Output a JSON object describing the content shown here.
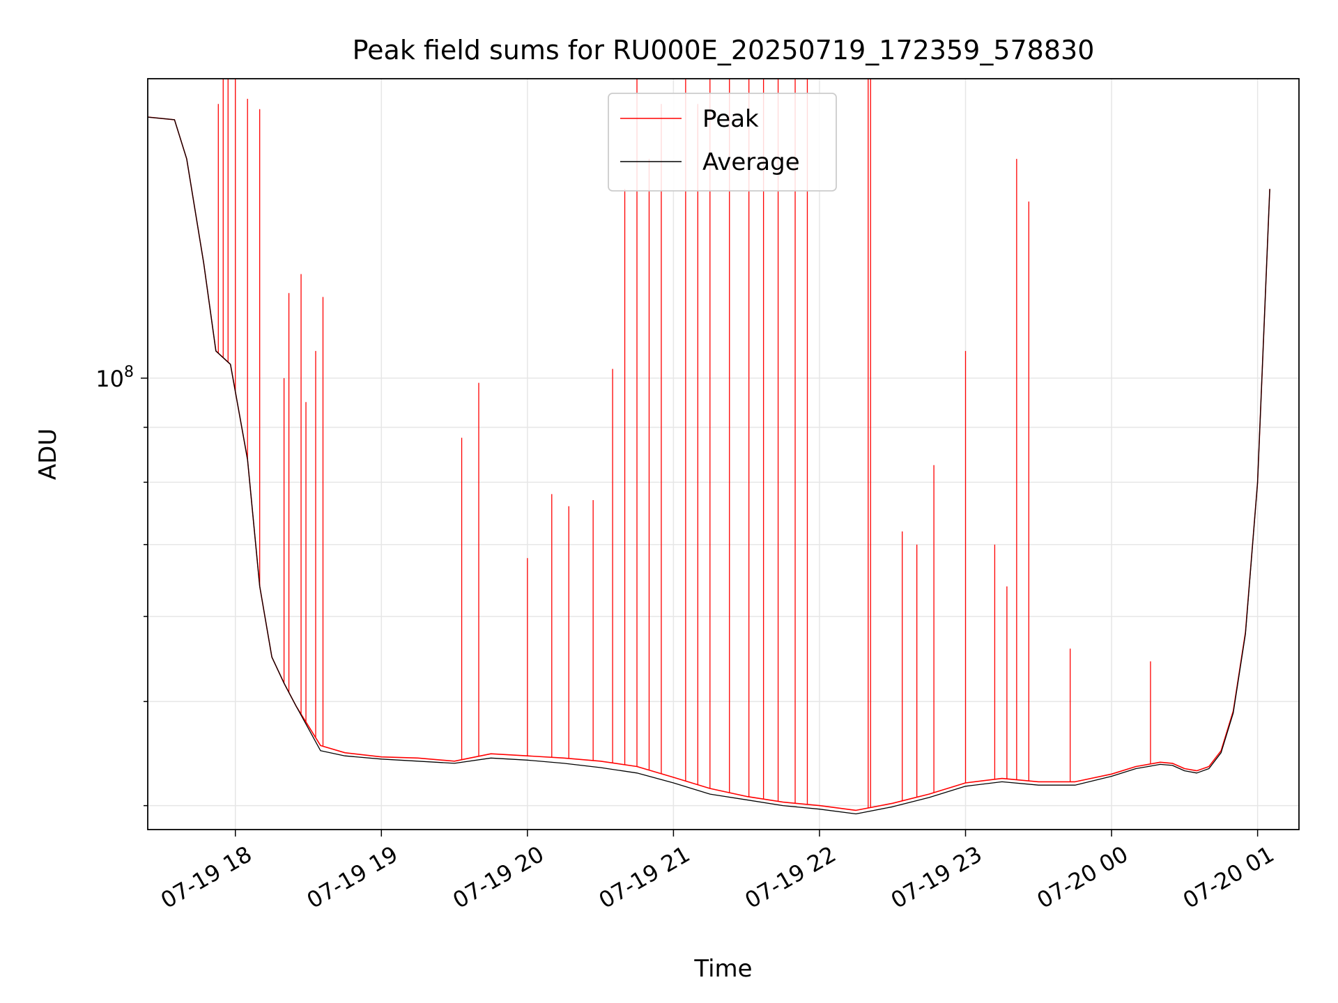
{
  "chart_data": {
    "type": "line",
    "title": "Peak field sums for RU000E_20250719_172359_578830",
    "xlabel": "Time",
    "ylabel": "ADU",
    "yscale": "log",
    "ylim": [
      38000000,
      190000000
    ],
    "xlim": [
      "2025-07-19 17:24",
      "2025-07-20 01:17"
    ],
    "x_ticks": [
      {
        "t": "2025-07-19 18:00",
        "label": "07-19 18"
      },
      {
        "t": "2025-07-19 19:00",
        "label": "07-19 19"
      },
      {
        "t": "2025-07-19 20:00",
        "label": "07-19 20"
      },
      {
        "t": "2025-07-19 21:00",
        "label": "07-19 21"
      },
      {
        "t": "2025-07-19 22:00",
        "label": "07-19 22"
      },
      {
        "t": "2025-07-19 23:00",
        "label": "07-19 23"
      },
      {
        "t": "2025-07-20 00:00",
        "label": "07-20 00"
      },
      {
        "t": "2025-07-20 01:00",
        "label": "07-20 01"
      }
    ],
    "y_ticks": [
      {
        "value": 100000000,
        "base": "10",
        "exp": "8"
      }
    ],
    "grid": true,
    "legend": {
      "position": "top-center"
    },
    "series": [
      {
        "name": "Peak",
        "color": "#ff0000",
        "x": [
          "2025-07-19 17:24",
          "2025-07-19 17:35",
          "2025-07-19 17:40",
          "2025-07-19 17:47",
          "2025-07-19 17:52",
          "2025-07-19 17:58",
          "2025-07-19 18:05",
          "2025-07-19 18:10",
          "2025-07-19 18:15",
          "2025-07-19 18:20",
          "2025-07-19 18:25",
          "2025-07-19 18:35",
          "2025-07-19 18:45",
          "2025-07-19 19:00",
          "2025-07-19 19:15",
          "2025-07-19 19:30",
          "2025-07-19 19:45",
          "2025-07-19 20:00",
          "2025-07-19 20:15",
          "2025-07-19 20:30",
          "2025-07-19 20:45",
          "2025-07-19 21:00",
          "2025-07-19 21:15",
          "2025-07-19 21:30",
          "2025-07-19 21:45",
          "2025-07-19 22:00",
          "2025-07-19 22:15",
          "2025-07-19 22:30",
          "2025-07-19 22:45",
          "2025-07-19 23:00",
          "2025-07-19 23:15",
          "2025-07-19 23:30",
          "2025-07-19 23:45",
          "2025-07-20 00:00",
          "2025-07-20 00:10",
          "2025-07-20 00:15",
          "2025-07-20 00:20",
          "2025-07-20 00:25",
          "2025-07-20 00:30",
          "2025-07-20 00:35",
          "2025-07-20 00:40",
          "2025-07-20 00:45",
          "2025-07-20 00:50",
          "2025-07-20 00:55",
          "2025-07-20 01:00",
          "2025-07-20 01:05"
        ],
        "values": [
          175000000,
          174000000,
          160000000,
          128000000,
          106000000,
          103000000,
          84000000,
          64000000,
          55000000,
          52000000,
          49500000,
          45500000,
          44800000,
          44400000,
          44300000,
          44000000,
          44700000,
          44500000,
          44300000,
          44000000,
          43500000,
          42500000,
          41500000,
          40800000,
          40300000,
          40000000,
          39600000,
          40200000,
          41000000,
          42000000,
          42400000,
          42100000,
          42100000,
          42800000,
          43500000,
          43700000,
          43900000,
          43800000,
          43300000,
          43100000,
          43500000,
          45000000,
          49000000,
          58000000,
          80000000,
          150000000
        ],
        "spikes": [
          {
            "x": "2025-07-19 17:53",
            "value": 180000000
          },
          {
            "x": "2025-07-19 17:55",
            "value": 190000000
          },
          {
            "x": "2025-07-19 17:57",
            "value": 190000000
          },
          {
            "x": "2025-07-19 18:00",
            "value": 190000000
          },
          {
            "x": "2025-07-19 18:05",
            "value": 182000000
          },
          {
            "x": "2025-07-19 18:10",
            "value": 178000000
          },
          {
            "x": "2025-07-19 18:22",
            "value": 120000000
          },
          {
            "x": "2025-07-19 18:27",
            "value": 125000000
          },
          {
            "x": "2025-07-19 18:33",
            "value": 106000000
          },
          {
            "x": "2025-07-19 18:36",
            "value": 119000000
          },
          {
            "x": "2025-07-19 18:20",
            "value": 100000000
          },
          {
            "x": "2025-07-19 18:29",
            "value": 95000000
          },
          {
            "x": "2025-07-19 19:33",
            "value": 88000000
          },
          {
            "x": "2025-07-19 19:40",
            "value": 99000000
          },
          {
            "x": "2025-07-19 20:00",
            "value": 68000000
          },
          {
            "x": "2025-07-19 20:10",
            "value": 78000000
          },
          {
            "x": "2025-07-19 20:17",
            "value": 76000000
          },
          {
            "x": "2025-07-19 20:27",
            "value": 77000000
          },
          {
            "x": "2025-07-19 20:35",
            "value": 102000000
          },
          {
            "x": "2025-07-19 20:40",
            "value": 150000000
          },
          {
            "x": "2025-07-19 20:45",
            "value": 190000000
          },
          {
            "x": "2025-07-19 20:50",
            "value": 160000000
          },
          {
            "x": "2025-07-19 20:55",
            "value": 180000000
          },
          {
            "x": "2025-07-19 21:05",
            "value": 190000000
          },
          {
            "x": "2025-07-19 21:10",
            "value": 180000000
          },
          {
            "x": "2025-07-19 21:15",
            "value": 190000000
          },
          {
            "x": "2025-07-19 21:23",
            "value": 190000000
          },
          {
            "x": "2025-07-19 21:31",
            "value": 190000000
          },
          {
            "x": "2025-07-19 21:37",
            "value": 190000000
          },
          {
            "x": "2025-07-19 21:43",
            "value": 190000000
          },
          {
            "x": "2025-07-19 21:50",
            "value": 190000000
          },
          {
            "x": "2025-07-19 21:55",
            "value": 190000000
          },
          {
            "x": "2025-07-19 22:20",
            "value": 190000000
          },
          {
            "x": "2025-07-19 22:21",
            "value": 190000000
          },
          {
            "x": "2025-07-19 22:34",
            "value": 72000000
          },
          {
            "x": "2025-07-19 22:40",
            "value": 70000000
          },
          {
            "x": "2025-07-19 22:47",
            "value": 83000000
          },
          {
            "x": "2025-07-19 23:00",
            "value": 106000000
          },
          {
            "x": "2025-07-19 23:12",
            "value": 70000000
          },
          {
            "x": "2025-07-19 23:17",
            "value": 64000000
          },
          {
            "x": "2025-07-19 23:21",
            "value": 160000000
          },
          {
            "x": "2025-07-19 23:26",
            "value": 146000000
          },
          {
            "x": "2025-07-19 23:43",
            "value": 56000000
          },
          {
            "x": "2025-07-20 00:16",
            "value": 54500000
          }
        ]
      },
      {
        "name": "Average",
        "color": "#000000",
        "x": [
          "2025-07-19 17:24",
          "2025-07-19 17:35",
          "2025-07-19 17:40",
          "2025-07-19 17:47",
          "2025-07-19 17:52",
          "2025-07-19 17:58",
          "2025-07-19 18:05",
          "2025-07-19 18:10",
          "2025-07-19 18:15",
          "2025-07-19 18:20",
          "2025-07-19 18:25",
          "2025-07-19 18:35",
          "2025-07-19 18:45",
          "2025-07-19 19:00",
          "2025-07-19 19:15",
          "2025-07-19 19:30",
          "2025-07-19 19:45",
          "2025-07-19 20:00",
          "2025-07-19 20:15",
          "2025-07-19 20:30",
          "2025-07-19 20:45",
          "2025-07-19 21:00",
          "2025-07-19 21:15",
          "2025-07-19 21:30",
          "2025-07-19 21:45",
          "2025-07-19 22:00",
          "2025-07-19 22:15",
          "2025-07-19 22:30",
          "2025-07-19 22:45",
          "2025-07-19 23:00",
          "2025-07-19 23:15",
          "2025-07-19 23:30",
          "2025-07-19 23:45",
          "2025-07-20 00:00",
          "2025-07-20 00:10",
          "2025-07-20 00:15",
          "2025-07-20 00:20",
          "2025-07-20 00:25",
          "2025-07-20 00:30",
          "2025-07-20 00:35",
          "2025-07-20 00:40",
          "2025-07-20 00:45",
          "2025-07-20 00:50",
          "2025-07-20 00:55",
          "2025-07-20 01:00",
          "2025-07-20 01:05"
        ],
        "values": [
          175000000,
          174000000,
          160000000,
          128000000,
          106000000,
          103000000,
          84000000,
          64000000,
          55000000,
          52000000,
          49500000,
          45000000,
          44500000,
          44200000,
          44000000,
          43800000,
          44300000,
          44100000,
          43800000,
          43400000,
          42900000,
          42000000,
          41000000,
          40500000,
          40000000,
          39700000,
          39300000,
          39900000,
          40700000,
          41700000,
          42100000,
          41800000,
          41800000,
          42600000,
          43300000,
          43500000,
          43700000,
          43600000,
          43100000,
          42900000,
          43300000,
          44800000,
          48800000,
          57800000,
          80000000,
          150000000
        ]
      }
    ]
  }
}
